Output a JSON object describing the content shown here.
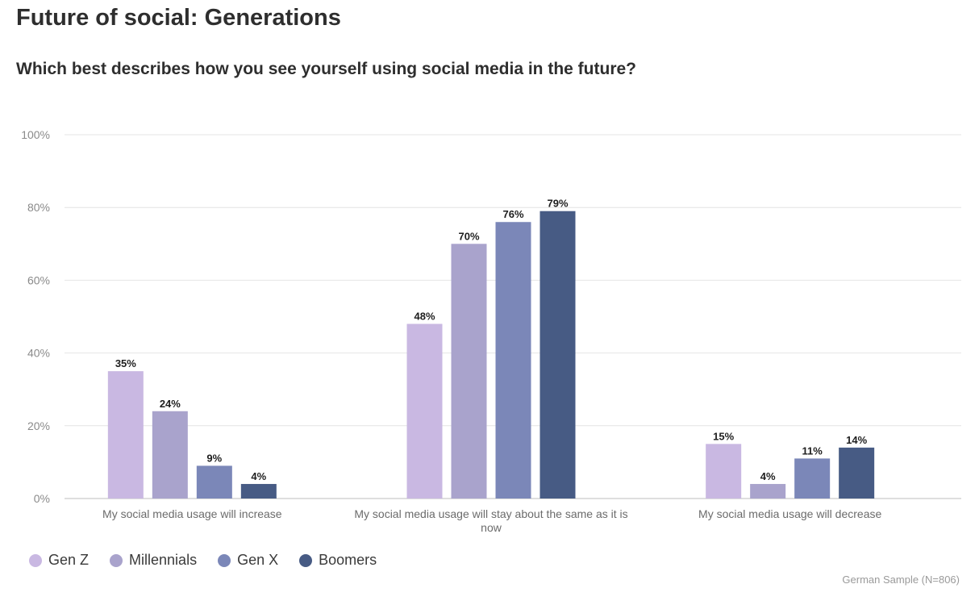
{
  "title": "Future of social: Generations",
  "subtitle": "Which best describes how you see yourself using social media in the future?",
  "source_note": "German Sample (N=806)",
  "chart_data": {
    "type": "bar",
    "categories": [
      "My social media usage will increase",
      [
        "My social media usage will stay about the same as it is",
        "now"
      ],
      "My social media usage will decrease"
    ],
    "series": [
      {
        "name": "Gen Z",
        "color": "#c9b8e2",
        "values": [
          35,
          48,
          15
        ],
        "labels": [
          "35%",
          "48%",
          "15%"
        ]
      },
      {
        "name": "Millennials",
        "color": "#a9a3cc",
        "values": [
          24,
          70,
          4
        ],
        "labels": [
          "24%",
          "70%",
          "4%"
        ]
      },
      {
        "name": "Gen X",
        "color": "#7b87b8",
        "values": [
          9,
          76,
          11
        ],
        "labels": [
          "9%",
          "76%",
          "11%"
        ]
      },
      {
        "name": "Boomers",
        "color": "#475b84",
        "values": [
          4,
          79,
          14
        ],
        "labels": [
          "4%",
          "79%",
          "14%"
        ]
      }
    ],
    "y_ticks": [
      "0%",
      "20%",
      "40%",
      "60%",
      "80%",
      "100%"
    ],
    "y_tick_values": [
      0,
      20,
      40,
      60,
      80,
      100
    ],
    "ylim": [
      0,
      100
    ],
    "grid": true,
    "legend_position": "bottom-left"
  }
}
